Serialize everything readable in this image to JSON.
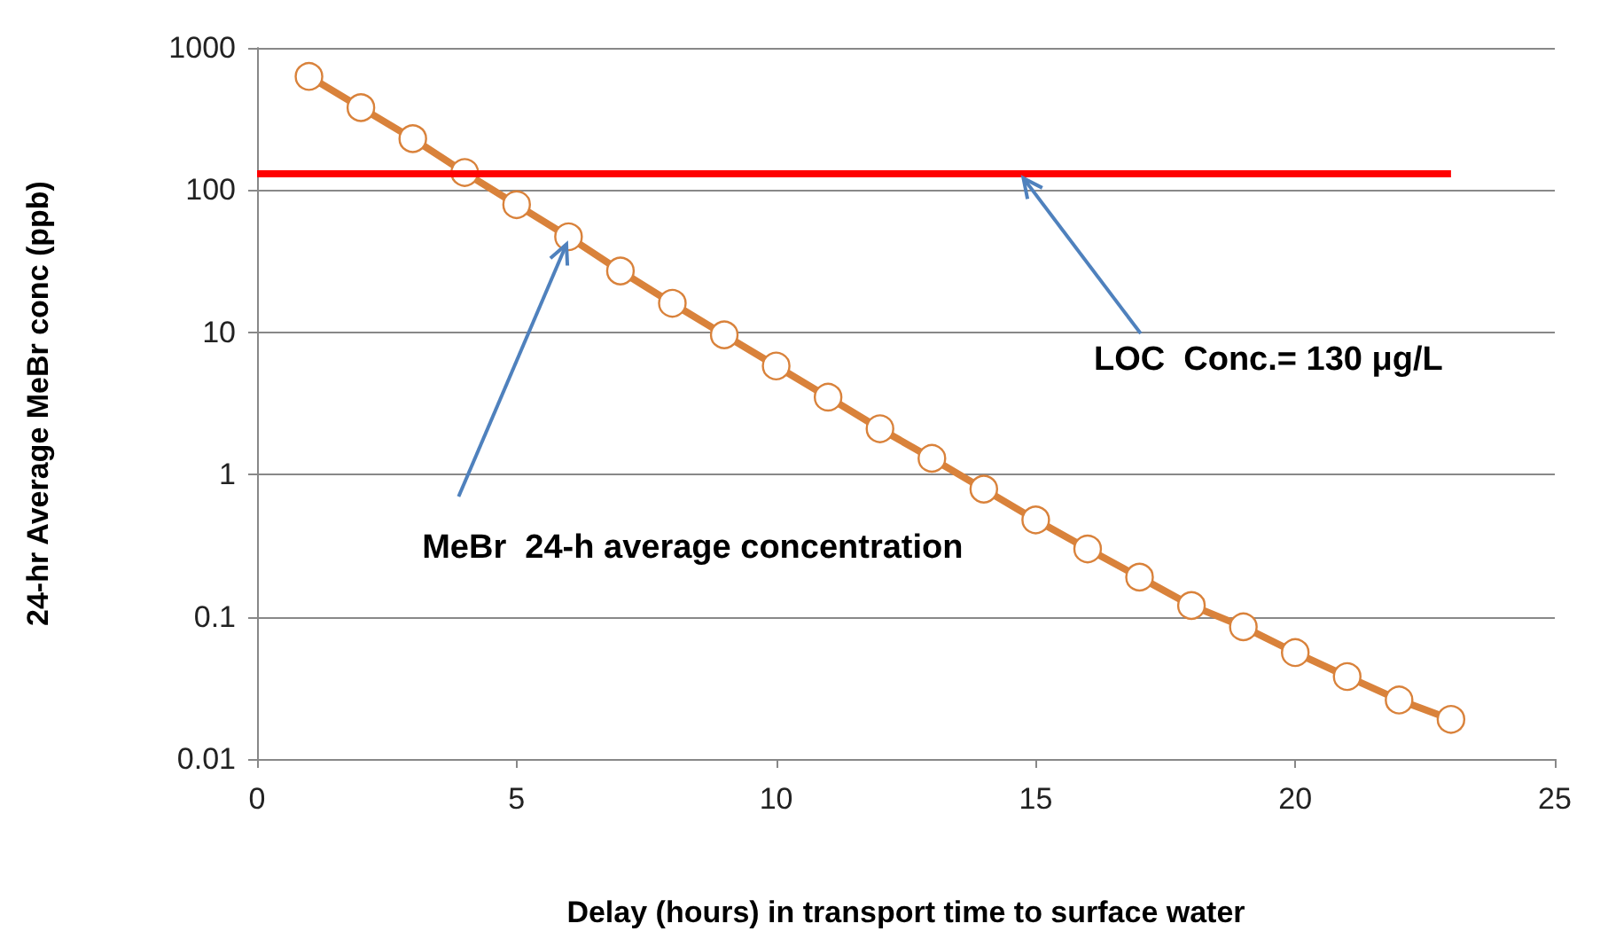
{
  "chart_data": {
    "type": "line",
    "xlabel": "Delay (hours) in transport time to surface water",
    "ylabel": "24-hr Average MeBr conc (ppb)",
    "x": [
      1,
      2,
      3,
      4,
      5,
      6,
      7,
      8,
      9,
      10,
      11,
      12,
      13,
      14,
      15,
      16,
      17,
      18,
      19,
      20,
      21,
      22,
      23
    ],
    "series": [
      {
        "color": "#d9823b",
        "values": [
          630,
          380,
          230,
          133,
          79,
          47,
          27,
          16,
          9.6,
          5.8,
          3.5,
          2.1,
          1.3,
          0.79,
          0.48,
          0.3,
          0.19,
          0.12,
          0.085,
          0.056,
          0.038,
          0.026,
          0.019
        ]
      }
    ],
    "xlim": [
      0,
      25
    ],
    "xticks": [
      0,
      5,
      10,
      15,
      20,
      25
    ],
    "ylim": [
      0.01,
      1000
    ],
    "yticks": [
      0.01,
      0.1,
      1,
      10,
      100,
      1000
    ],
    "log": "y",
    "grid": "y",
    "marker": "circle",
    "line_style": "solid",
    "ref_lines": [
      {
        "axis": "y",
        "value": 130,
        "label": "LOC  Conc.= 130 μg/L",
        "color": "#ff0000"
      }
    ],
    "annotations": [
      {
        "text": "MeBr  24-h average concentration",
        "x": 6,
        "y": 45
      }
    ]
  }
}
